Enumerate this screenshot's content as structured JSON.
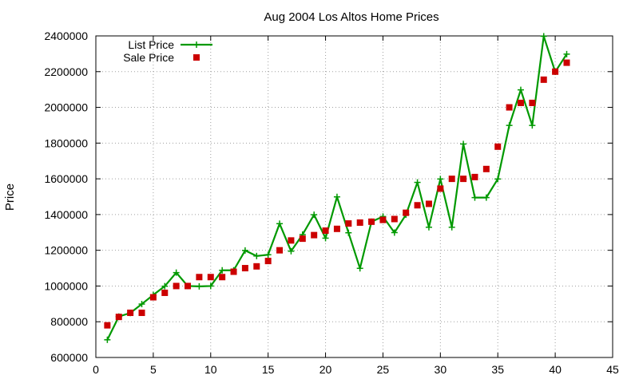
{
  "chart_data": {
    "type": "line",
    "title": "Aug 2004 Los Altos Home Prices",
    "xlabel": "",
    "ylabel": "Price",
    "xlim": [
      0,
      45
    ],
    "ylim": [
      600000,
      2400000
    ],
    "x_ticks": [
      "0",
      "5",
      "10",
      "15",
      "20",
      "25",
      "30",
      "35",
      "40",
      "45"
    ],
    "y_ticks": [
      "600000",
      "800000",
      "1000000",
      "1200000",
      "1400000",
      "1600000",
      "1800000",
      "2000000",
      "2200000",
      "2400000"
    ],
    "grid": true,
    "legend_position": "top-left",
    "x": [
      1,
      2,
      3,
      4,
      5,
      6,
      7,
      8,
      9,
      10,
      11,
      12,
      13,
      14,
      15,
      16,
      17,
      18,
      19,
      20,
      21,
      22,
      23,
      24,
      25,
      26,
      27,
      28,
      29,
      30,
      31,
      32,
      33,
      34,
      35,
      36,
      37,
      38,
      39,
      40,
      41
    ],
    "series": [
      {
        "name": "List Price",
        "style": "linespoints",
        "color": "#009900",
        "values": [
          699000,
          829000,
          849000,
          899000,
          950000,
          999000,
          1075000,
          1000000,
          998000,
          1000000,
          1088000,
          1088000,
          1199000,
          1168000,
          1175000,
          1349000,
          1195000,
          1288000,
          1399000,
          1268000,
          1499000,
          1298000,
          1099000,
          1360000,
          1389000,
          1299000,
          1399000,
          1580000,
          1329000,
          1599000,
          1329000,
          1795000,
          1495000,
          1495000,
          1599000,
          1899000,
          2098000,
          1899000,
          2398000,
          2199000,
          2298000
        ]
      },
      {
        "name": "Sale Price",
        "style": "points",
        "color": "#cc0000",
        "values": [
          780000,
          827000,
          850000,
          850000,
          937000,
          962000,
          1000000,
          1000000,
          1050000,
          1050000,
          1050000,
          1080000,
          1100000,
          1110000,
          1140000,
          1200000,
          1255000,
          1265000,
          1285000,
          1310000,
          1320000,
          1350000,
          1355000,
          1360000,
          1370000,
          1375000,
          1410000,
          1452000,
          1460000,
          1545000,
          1600000,
          1600000,
          1610000,
          1655000,
          1780000,
          2000000,
          2025000,
          2025000,
          2155000,
          2200000,
          2250000
        ]
      }
    ]
  }
}
